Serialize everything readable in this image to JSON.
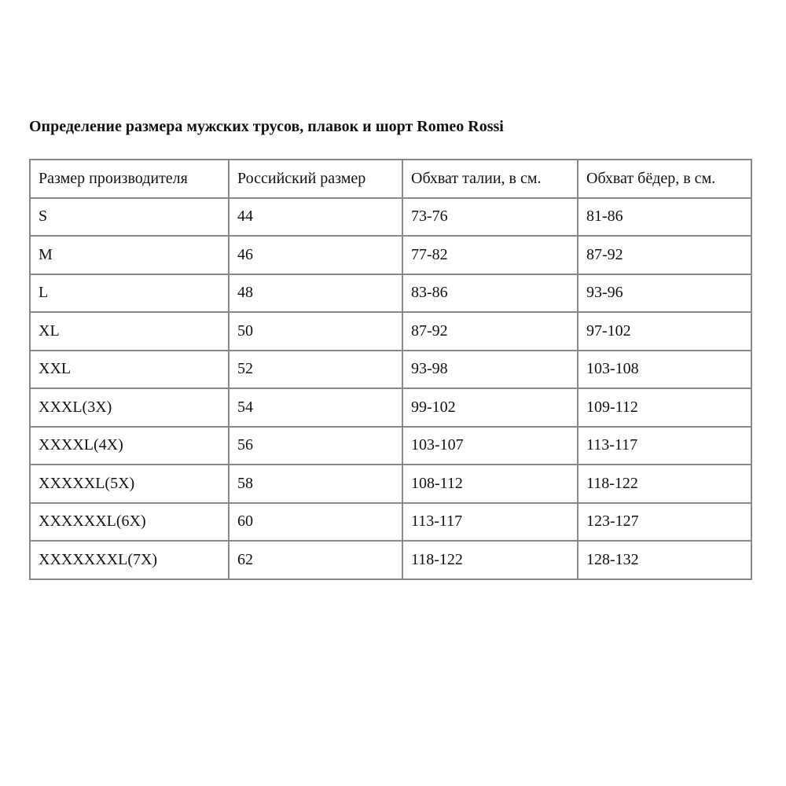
{
  "title": "Определение размера мужских трусов, плавок и шорт Romeo Rossi",
  "table": {
    "headers": [
      "Размер производителя",
      "Российский размер",
      "Обхват талии, в см.",
      "Обхват бёдер, в см."
    ],
    "rows": [
      [
        "S",
        "44",
        "73-76",
        "81-86"
      ],
      [
        "M",
        "46",
        "77-82",
        "87-92"
      ],
      [
        "L",
        "48",
        "83-86",
        "93-96"
      ],
      [
        "XL",
        "50",
        "87-92",
        "97-102"
      ],
      [
        "XXL",
        "52",
        "93-98",
        "103-108"
      ],
      [
        "XXXL(3X)",
        "54",
        "99-102",
        "109-112"
      ],
      [
        "XXXXL(4X)",
        "56",
        "103-107",
        "113-117"
      ],
      [
        "XXXXXL(5X)",
        "58",
        "108-112",
        "118-122"
      ],
      [
        "XXXXXXL(6X)",
        "60",
        "113-117",
        "123-127"
      ],
      [
        "XXXXXXXL(7X)",
        "62",
        "118-122",
        "128-132"
      ]
    ]
  }
}
